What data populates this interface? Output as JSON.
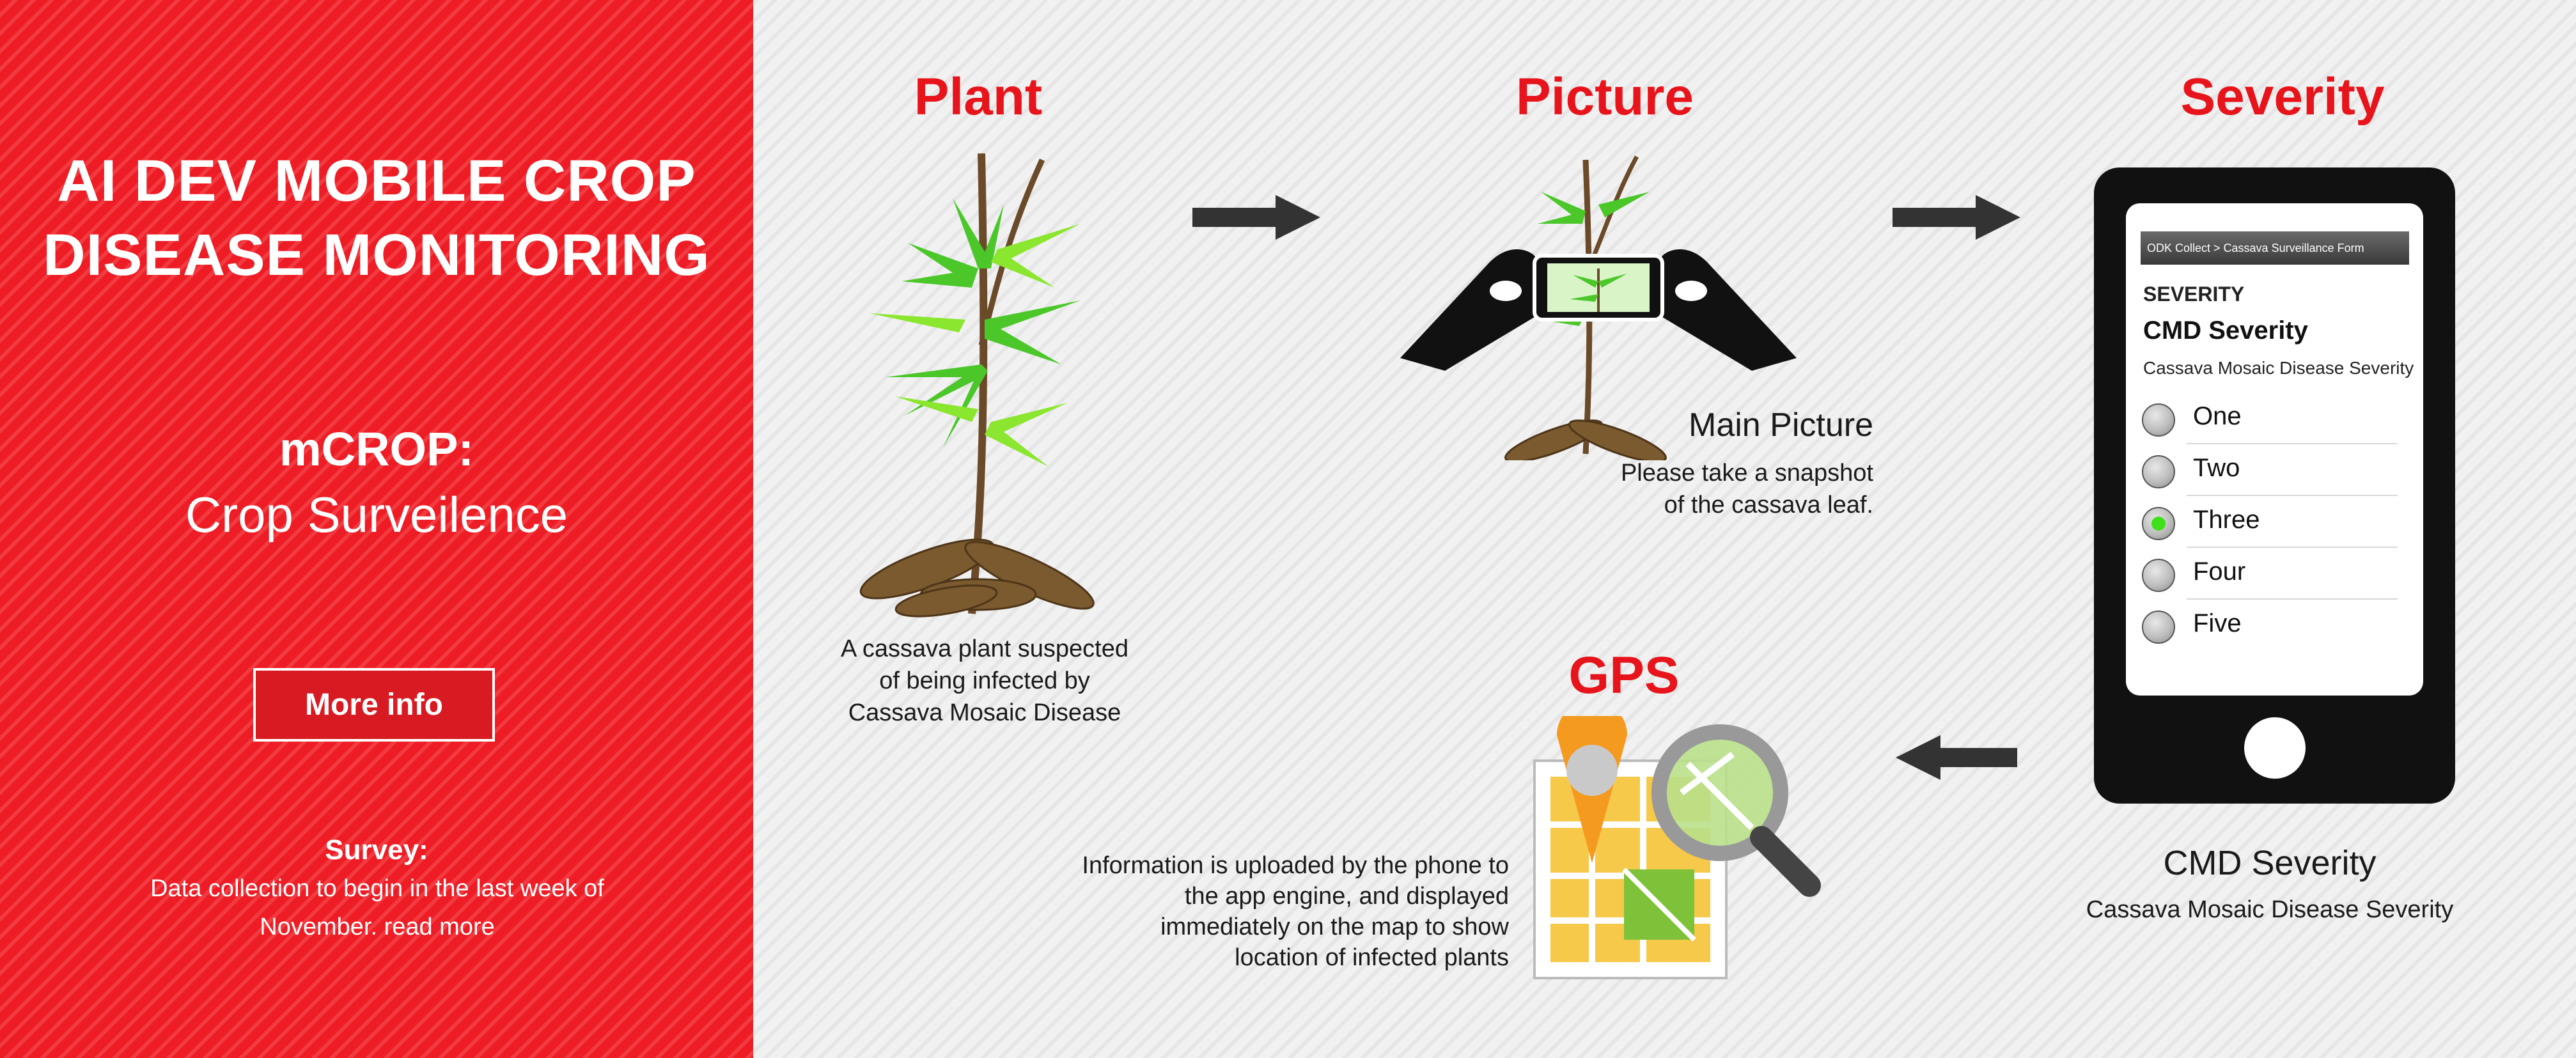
{
  "left": {
    "headline_line1": "AI DEV MOBILE CROP",
    "headline_line2": "DISEASE MONITORING",
    "app_name": "mCROP:",
    "app_tagline": "Crop Surveilence",
    "more_info": "More info",
    "survey_title": "Survey:",
    "survey_text": "Data collection to begin in the last week of November. read more"
  },
  "steps": {
    "plant": {
      "title": "Plant",
      "caption_line1": "A cassava plant suspected",
      "caption_line2": "of being infected by",
      "caption_line3": "Cassava Mosaic Disease"
    },
    "picture": {
      "title": "Picture",
      "label": "Main Picture",
      "caption_line1": "Please take a snapshot",
      "caption_line2": "of the cassava leaf."
    },
    "severity": {
      "title": "Severity",
      "caption_title": "CMD Severity",
      "caption_sub": "Cassava Mosaic Disease Severity"
    },
    "gps": {
      "title": "GPS",
      "caption_line1": "Information is uploaded by the phone to",
      "caption_line2": "the app engine, and displayed",
      "caption_line3": "immediately on the map to show",
      "caption_line4": "location of infected plants"
    }
  },
  "phone": {
    "breadcrumb": "ODK Collect > Cassava Surveillance Form",
    "section": "SEVERITY",
    "question": "CMD Severity",
    "hint": "Cassava Mosaic Disease Severity",
    "options": [
      "One",
      "Two",
      "Three",
      "Four",
      "Five"
    ],
    "selected_index": 2
  },
  "colors": {
    "brand_red": "#e8141b",
    "panel_red": "#ee1c25",
    "selected_radio": "#3ee01a"
  }
}
